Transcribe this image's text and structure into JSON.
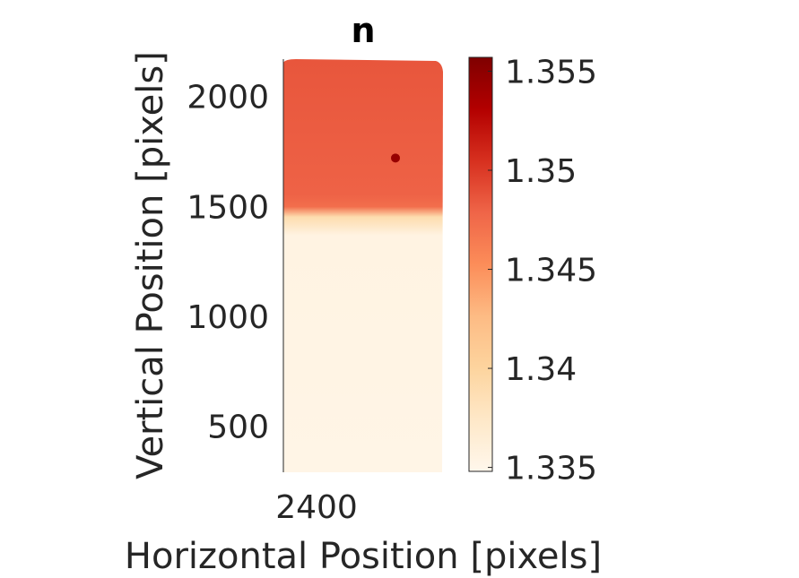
{
  "chart_data": {
    "type": "heatmap",
    "title": "n",
    "xlabel": "Horizontal Position [pixels]",
    "ylabel": "Vertical Position [pixels]",
    "x_ticks": [
      2400
    ],
    "x_tick_labels": [
      "2400"
    ],
    "y_ticks": [
      500,
      1000,
      1500,
      2000
    ],
    "y_tick_labels": [
      "500",
      "1000",
      "1500",
      "2000"
    ],
    "ylim": [
      290,
      2170
    ],
    "colorbar": {
      "colormap": "OrRd",
      "range": [
        1.3348,
        1.3557
      ],
      "ticks": [
        1.335,
        1.34,
        1.345,
        1.35,
        1.355
      ],
      "tick_labels": [
        "1.335",
        "1.34",
        "1.345",
        "1.35",
        "1.355"
      ],
      "stops": [
        "#fff7ec",
        "#fee8c8",
        "#fdd49e",
        "#fdbb84",
        "#fc8d59",
        "#ef6548",
        "#d7301f",
        "#b30000",
        "#7f0000"
      ]
    },
    "regions": [
      {
        "name": "upper",
        "y_range": [
          1480,
          2170
        ],
        "value": 1.348
      },
      {
        "name": "lower",
        "y_range": [
          290,
          1480
        ],
        "value": 1.3355
      }
    ],
    "spots": [
      {
        "y": 1720,
        "value": 1.3545
      }
    ],
    "grid": false
  }
}
